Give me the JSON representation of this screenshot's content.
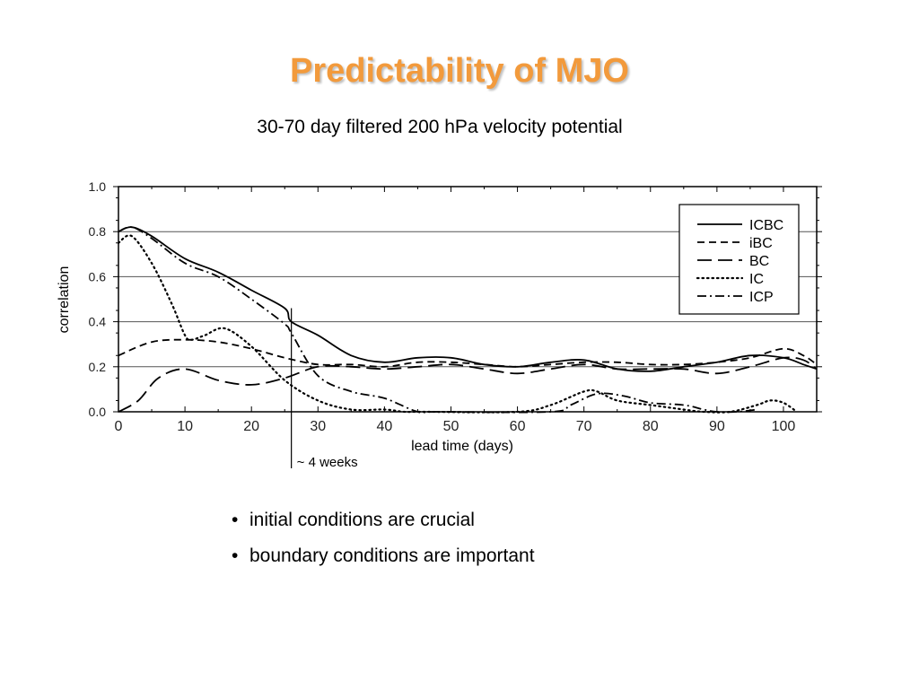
{
  "slide": {
    "title": "Predictability of MJO",
    "title_color": "#f29a3c"
  },
  "bullets": [
    "initial conditions are crucial",
    "boundary conditions are important"
  ],
  "chart_data": {
    "type": "line",
    "title": "30-70 day filtered 200 hPa velocity potential",
    "xlabel": "lead time (days)",
    "ylabel": "correlation",
    "xlim": [
      0,
      105
    ],
    "ylim": [
      0,
      1.0
    ],
    "xticks": [
      "0",
      "10",
      "20",
      "30",
      "40",
      "50",
      "60",
      "70",
      "80",
      "90",
      "100"
    ],
    "yticks": [
      "0.0",
      "0.2",
      "0.4",
      "0.6",
      "0.8",
      "1.0"
    ],
    "grid": "horizontal",
    "legend": "top-right",
    "annotation": {
      "text": "~ 4 weeks",
      "x": 26
    },
    "series": [
      {
        "name": "ICBC",
        "style": "solid",
        "x": [
          0,
          2,
          5,
          10,
          15,
          20,
          25,
          26,
          30,
          35,
          40,
          45,
          50,
          55,
          60,
          65,
          70,
          75,
          80,
          85,
          90,
          95,
          100,
          103,
          105
        ],
        "y": [
          0.8,
          0.82,
          0.78,
          0.68,
          0.62,
          0.54,
          0.46,
          0.4,
          0.34,
          0.25,
          0.22,
          0.24,
          0.24,
          0.21,
          0.2,
          0.22,
          0.23,
          0.19,
          0.18,
          0.2,
          0.22,
          0.25,
          0.24,
          0.21,
          0.19
        ]
      },
      {
        "name": "iBC",
        "style": "dashed",
        "x": [
          0,
          5,
          10,
          15,
          20,
          25,
          30,
          35,
          40,
          45,
          50,
          55,
          60,
          65,
          70,
          75,
          80,
          85,
          90,
          95,
          100,
          103,
          105
        ],
        "y": [
          0.25,
          0.31,
          0.32,
          0.31,
          0.28,
          0.24,
          0.21,
          0.21,
          0.2,
          0.22,
          0.22,
          0.21,
          0.2,
          0.21,
          0.22,
          0.22,
          0.21,
          0.21,
          0.22,
          0.24,
          0.28,
          0.25,
          0.21
        ]
      },
      {
        "name": "BC",
        "style": "longdash",
        "x": [
          0,
          3,
          6,
          10,
          15,
          20,
          25,
          30,
          35,
          40,
          45,
          50,
          55,
          60,
          65,
          70,
          75,
          80,
          85,
          90,
          95,
          100,
          103,
          105
        ],
        "y": [
          0.0,
          0.05,
          0.15,
          0.19,
          0.14,
          0.12,
          0.15,
          0.2,
          0.2,
          0.19,
          0.2,
          0.21,
          0.19,
          0.17,
          0.19,
          0.21,
          0.19,
          0.19,
          0.19,
          0.17,
          0.2,
          0.24,
          0.23,
          0.19
        ]
      },
      {
        "name": "IC",
        "style": "dotted",
        "x": [
          0,
          2,
          5,
          8,
          10,
          11,
          13,
          16,
          20,
          25,
          30,
          35,
          40,
          43,
          46,
          60,
          65,
          70,
          72,
          75,
          80,
          85,
          88,
          92,
          96,
          98,
          100,
          102
        ],
        "y": [
          0.75,
          0.78,
          0.66,
          0.48,
          0.34,
          0.32,
          0.34,
          0.37,
          0.29,
          0.14,
          0.05,
          0.01,
          0.01,
          0.0,
          0.0,
          0.0,
          0.03,
          0.09,
          0.09,
          0.05,
          0.03,
          0.01,
          0.0,
          0.0,
          0.03,
          0.05,
          0.04,
          0.0
        ]
      },
      {
        "name": "ICP",
        "style": "dashdot",
        "x": [
          0,
          2,
          5,
          10,
          15,
          20,
          25,
          26,
          30,
          35,
          40,
          45,
          48,
          65,
          68,
          72,
          76,
          80,
          85,
          88,
          90,
          93,
          96
        ],
        "y": [
          0.8,
          0.82,
          0.77,
          0.66,
          0.6,
          0.5,
          0.39,
          0.35,
          0.16,
          0.09,
          0.06,
          0.0,
          0.0,
          0.0,
          0.03,
          0.08,
          0.07,
          0.04,
          0.03,
          0.01,
          0.0,
          0.0,
          0.01
        ]
      }
    ]
  }
}
